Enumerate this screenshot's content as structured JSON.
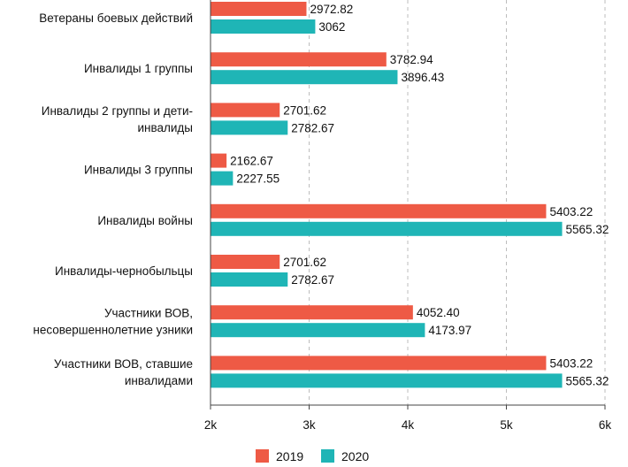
{
  "chart_data": {
    "type": "bar",
    "orientation": "horizontal",
    "categories": [
      [
        "Ветераны боевых действий"
      ],
      [
        "Инвалиды 1 группы"
      ],
      [
        "Инвалиды 2 группы и дети-",
        "инвалиды"
      ],
      [
        "Инвалиды 3 группы"
      ],
      [
        "Инвалиды войны"
      ],
      [
        "Инвалиды-чернобыльцы"
      ],
      [
        "Участники ВОВ,",
        "несовершеннолетние узники"
      ],
      [
        "Участники ВОВ, ставшие",
        "инвалидами"
      ]
    ],
    "series": [
      {
        "name": "2019",
        "color": "#ee5a45",
        "values": [
          2972.82,
          3782.94,
          2701.62,
          2162.67,
          5403.22,
          2701.62,
          4052.4,
          5403.22
        ],
        "labels": [
          "2972.82",
          "3782.94",
          "2701.62",
          "2162.67",
          "5403.22",
          "2701.62",
          "4052.40",
          "5403.22"
        ]
      },
      {
        "name": "2020",
        "color": "#1fb5b6",
        "values": [
          3062,
          3896.43,
          2782.67,
          2227.55,
          5565.32,
          2782.67,
          4173.97,
          5565.32
        ],
        "labels": [
          "3062",
          "3896.43",
          "2782.67",
          "2227.55",
          "5565.32",
          "2782.67",
          "4173.97",
          "5565.32"
        ]
      }
    ],
    "xlim": [
      2000,
      6000
    ],
    "xticks": [
      2000,
      3000,
      4000,
      5000,
      6000
    ],
    "xtick_labels": [
      "2k",
      "3k",
      "4k",
      "5k",
      "6k"
    ],
    "grid": true,
    "legend_position": "bottom-center",
    "title": "",
    "xlabel": "",
    "ylabel": ""
  }
}
